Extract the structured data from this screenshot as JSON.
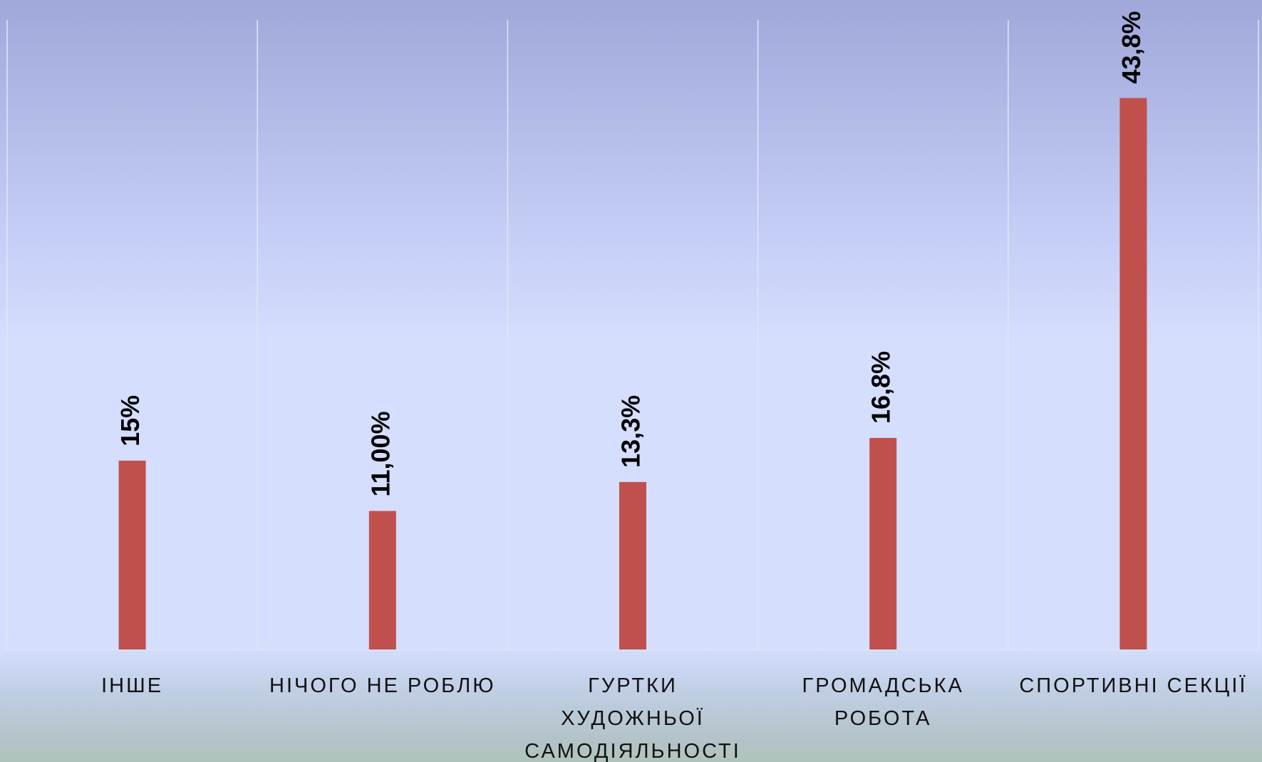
{
  "chart_data": {
    "type": "bar",
    "categories": [
      "ІНШЕ",
      "НІЧОГО НЕ РОБЛЮ",
      "ГУРТКИ\nХУДОЖНЬОЇ\nСАМОДІЯЛЬНОСТІ",
      "ГРОМАДСЬКА\nРОБОТА",
      "СПОРТИВНІ СЕКЦІЇ"
    ],
    "values": [
      15,
      11,
      13.3,
      16.8,
      43.8
    ],
    "value_labels": [
      "15%",
      "11,00%",
      "13,3%",
      "16,8%",
      "43,8%"
    ],
    "color": "#c0504d",
    "ylim": [
      0,
      50
    ]
  }
}
